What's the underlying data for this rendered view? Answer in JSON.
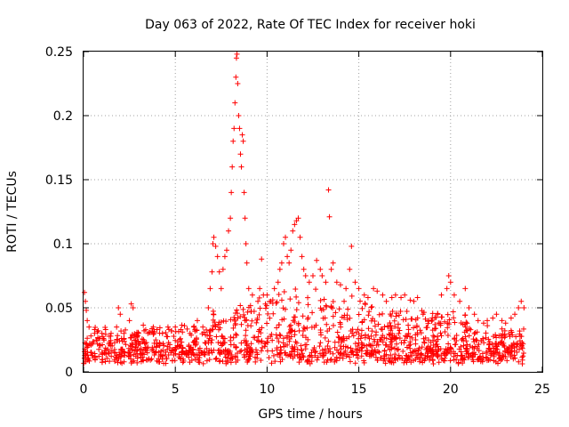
{
  "chart_data": {
    "type": "scatter",
    "title": "Day 063 of 2022, Rate Of TEC Index for receiver hoki",
    "xlabel": "GPS time / hours",
    "ylabel": "ROTI / TECUs",
    "xlim": [
      0,
      25
    ],
    "ylim": [
      0,
      0.25
    ],
    "xticks": [
      0,
      5,
      10,
      15,
      20,
      25
    ],
    "xtick_labels": [
      "0",
      "5",
      "10",
      "15",
      "20",
      "25"
    ],
    "yticks": [
      0,
      0.05,
      0.1,
      0.15,
      0.2,
      0.25
    ],
    "ytick_labels": [
      "0",
      "0.05",
      "0.1",
      "0.15",
      "0.2",
      "0.25"
    ],
    "grid": true,
    "marker": "+",
    "color": "#ff0000",
    "series": [
      {
        "name": "ROTI",
        "points": [
          [
            0.05,
            0.062
          ],
          [
            0.1,
            0.055
          ],
          [
            0.15,
            0.048
          ],
          [
            0.2,
            0.04
          ],
          [
            0.3,
            0.035
          ],
          [
            0.4,
            0.028
          ],
          [
            0.6,
            0.03
          ],
          [
            0.8,
            0.032
          ],
          [
            1.0,
            0.03
          ],
          [
            1.2,
            0.033
          ],
          [
            1.5,
            0.03
          ],
          [
            1.8,
            0.035
          ],
          [
            1.9,
            0.05
          ],
          [
            2.0,
            0.045
          ],
          [
            2.2,
            0.03
          ],
          [
            2.5,
            0.04
          ],
          [
            2.6,
            0.053
          ],
          [
            2.7,
            0.05
          ],
          [
            3.0,
            0.03
          ],
          [
            3.3,
            0.032
          ],
          [
            3.5,
            0.03
          ],
          [
            3.8,
            0.035
          ],
          [
            4.0,
            0.033
          ],
          [
            4.3,
            0.03
          ],
          [
            4.6,
            0.035
          ],
          [
            4.8,
            0.032
          ],
          [
            5.0,
            0.035
          ],
          [
            5.3,
            0.033
          ],
          [
            5.5,
            0.036
          ],
          [
            5.8,
            0.03
          ],
          [
            6.0,
            0.035
          ],
          [
            6.2,
            0.04
          ],
          [
            6.5,
            0.035
          ],
          [
            6.8,
            0.05
          ],
          [
            6.9,
            0.065
          ],
          [
            7.0,
            0.078
          ],
          [
            7.05,
            0.1
          ],
          [
            7.1,
            0.105
          ],
          [
            7.2,
            0.098
          ],
          [
            7.3,
            0.09
          ],
          [
            7.4,
            0.078
          ],
          [
            7.5,
            0.065
          ],
          [
            7.6,
            0.08
          ],
          [
            7.7,
            0.09
          ],
          [
            7.8,
            0.095
          ],
          [
            7.9,
            0.11
          ],
          [
            8.0,
            0.12
          ],
          [
            8.05,
            0.14
          ],
          [
            8.1,
            0.16
          ],
          [
            8.15,
            0.18
          ],
          [
            8.2,
            0.19
          ],
          [
            8.25,
            0.21
          ],
          [
            8.3,
            0.23
          ],
          [
            8.33,
            0.245
          ],
          [
            8.36,
            0.248
          ],
          [
            8.4,
            0.225
          ],
          [
            8.45,
            0.2
          ],
          [
            8.5,
            0.19
          ],
          [
            8.55,
            0.17
          ],
          [
            8.6,
            0.16
          ],
          [
            8.65,
            0.185
          ],
          [
            8.7,
            0.18
          ],
          [
            8.75,
            0.14
          ],
          [
            8.8,
            0.12
          ],
          [
            8.85,
            0.1
          ],
          [
            8.9,
            0.085
          ],
          [
            9.0,
            0.065
          ],
          [
            9.2,
            0.06
          ],
          [
            9.5,
            0.055
          ],
          [
            9.6,
            0.065
          ],
          [
            9.7,
            0.088
          ],
          [
            9.8,
            0.06
          ],
          [
            10.0,
            0.06
          ],
          [
            10.2,
            0.055
          ],
          [
            10.4,
            0.065
          ],
          [
            10.6,
            0.07
          ],
          [
            10.7,
            0.08
          ],
          [
            10.8,
            0.085
          ],
          [
            10.9,
            0.1
          ],
          [
            11.0,
            0.105
          ],
          [
            11.1,
            0.09
          ],
          [
            11.2,
            0.085
          ],
          [
            11.3,
            0.095
          ],
          [
            11.4,
            0.11
          ],
          [
            11.5,
            0.115
          ],
          [
            11.6,
            0.118
          ],
          [
            11.7,
            0.12
          ],
          [
            11.8,
            0.105
          ],
          [
            11.9,
            0.09
          ],
          [
            12.0,
            0.08
          ],
          [
            12.1,
            0.075
          ],
          [
            12.3,
            0.07
          ],
          [
            12.5,
            0.075
          ],
          [
            12.7,
            0.087
          ],
          [
            12.9,
            0.08
          ],
          [
            13.0,
            0.075
          ],
          [
            13.2,
            0.07
          ],
          [
            13.35,
            0.142
          ],
          [
            13.4,
            0.121
          ],
          [
            13.5,
            0.08
          ],
          [
            13.6,
            0.085
          ],
          [
            13.8,
            0.07
          ],
          [
            14.0,
            0.068
          ],
          [
            14.3,
            0.065
          ],
          [
            14.5,
            0.08
          ],
          [
            14.6,
            0.098
          ],
          [
            14.8,
            0.07
          ],
          [
            15.0,
            0.065
          ],
          [
            15.3,
            0.06
          ],
          [
            15.5,
            0.058
          ],
          [
            15.8,
            0.065
          ],
          [
            16.0,
            0.063
          ],
          [
            16.3,
            0.06
          ],
          [
            16.5,
            0.055
          ],
          [
            16.8,
            0.058
          ],
          [
            17.0,
            0.06
          ],
          [
            17.3,
            0.058
          ],
          [
            17.5,
            0.06
          ],
          [
            17.8,
            0.056
          ],
          [
            18.0,
            0.055
          ],
          [
            18.2,
            0.058
          ],
          [
            18.5,
            0.045
          ],
          [
            18.8,
            0.04
          ],
          [
            19.0,
            0.042
          ],
          [
            19.3,
            0.045
          ],
          [
            19.5,
            0.06
          ],
          [
            19.8,
            0.065
          ],
          [
            19.9,
            0.075
          ],
          [
            20.0,
            0.07
          ],
          [
            20.2,
            0.06
          ],
          [
            20.5,
            0.055
          ],
          [
            20.8,
            0.065
          ],
          [
            21.0,
            0.05
          ],
          [
            21.3,
            0.045
          ],
          [
            21.5,
            0.04
          ],
          [
            21.8,
            0.038
          ],
          [
            22.0,
            0.04
          ],
          [
            22.3,
            0.042
          ],
          [
            22.5,
            0.045
          ],
          [
            22.8,
            0.04
          ],
          [
            23.0,
            0.038
          ],
          [
            23.3,
            0.042
          ],
          [
            23.5,
            0.045
          ],
          [
            23.7,
            0.05
          ],
          [
            23.85,
            0.055
          ],
          [
            24.0,
            0.05
          ]
        ]
      }
    ]
  }
}
